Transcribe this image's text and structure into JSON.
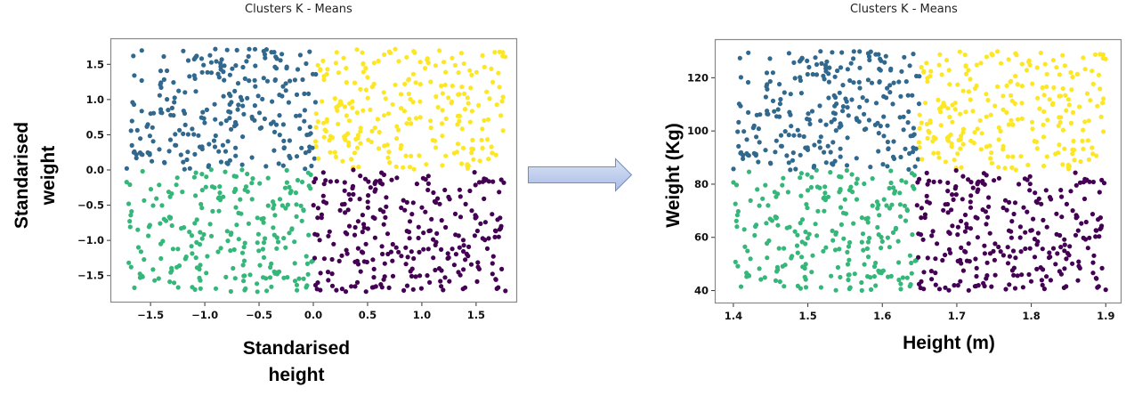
{
  "chart_data": [
    {
      "type": "scatter",
      "title": "Clusters K - Means",
      "xlabel": "Standarised height",
      "ylabel": "Standarised weight",
      "xlim": [
        -1.87,
        1.87
      ],
      "ylim": [
        -1.87,
        1.87
      ],
      "xticks": [
        -1.5,
        -1.0,
        -0.5,
        0.0,
        0.5,
        1.0,
        1.5
      ],
      "xtick_labels": [
        "−1.5",
        "−1.0",
        "−0.5",
        "0.0",
        "0.5",
        "1.0",
        "1.5"
      ],
      "yticks": [
        -1.5,
        -1.0,
        -0.5,
        0.0,
        0.5,
        1.0,
        1.5
      ],
      "ytick_labels": [
        "−1.5",
        "−1.0",
        "−0.5",
        "0.0",
        "0.5",
        "1.0",
        "1.5"
      ],
      "grid": false,
      "legend": null,
      "data_range": {
        "x": [
          -1.72,
          1.77
        ],
        "y": [
          -1.73,
          1.72
        ]
      },
      "n_points": 1000,
      "series": [
        {
          "name": "cluster-blue",
          "color": "#31688e",
          "region": "x < 0, y > 0",
          "centroid": [
            -0.86,
            0.88
          ]
        },
        {
          "name": "cluster-yellow",
          "color": "#fde725",
          "region": "x > 0, y > 0",
          "centroid": [
            0.9,
            0.86
          ]
        },
        {
          "name": "cluster-green",
          "color": "#35b779",
          "region": "x < 0, y < 0",
          "centroid": [
            -0.88,
            -0.87
          ]
        },
        {
          "name": "cluster-purple",
          "color": "#440154",
          "region": "x > 0, y < 0",
          "centroid": [
            0.88,
            -0.86
          ]
        }
      ]
    },
    {
      "type": "scatter",
      "title": "Clusters K - Means",
      "xlabel": "Height (m)",
      "ylabel": "Weight (Kg)",
      "xlim": [
        1.375,
        1.92
      ],
      "ylim": [
        35.5,
        134.5
      ],
      "xticks": [
        1.4,
        1.5,
        1.6,
        1.7,
        1.8,
        1.9
      ],
      "xtick_labels": [
        "1.4",
        "1.5",
        "1.6",
        "1.7",
        "1.8",
        "1.9"
      ],
      "yticks": [
        40,
        60,
        80,
        100,
        120
      ],
      "ytick_labels": [
        "40",
        "60",
        "80",
        "100",
        "120"
      ],
      "grid": false,
      "legend": null,
      "data_range": {
        "x": [
          1.4,
          1.9
        ],
        "y": [
          40,
          130
        ]
      },
      "n_points": 1000,
      "series": [
        {
          "name": "cluster-blue",
          "color": "#31688e",
          "region": "height < ~1.645, weight > ~88"
        },
        {
          "name": "cluster-yellow",
          "color": "#fde725",
          "region": "height > ~1.645, weight > ~88"
        },
        {
          "name": "cluster-green",
          "color": "#35b779",
          "region": "height < ~1.645, weight < ~85"
        },
        {
          "name": "cluster-purple",
          "color": "#440154",
          "region": "height > ~1.645, weight < ~85"
        }
      ]
    }
  ],
  "left_panel": {
    "title": "Clusters K - Means",
    "xlabel_line1": "Standarised",
    "xlabel_line2": "height",
    "ylabel_line1": "Standarised",
    "ylabel_line2": "weight"
  },
  "right_panel": {
    "title": "Clusters K - Means",
    "xlabel": "Height (m)",
    "ylabel": "Weight (Kg)"
  },
  "arrow": {
    "icon": "right-arrow-icon",
    "fill_top": "#dbe3f5",
    "fill_bottom": "#a9bce6",
    "stroke": "#6f8cc8"
  }
}
